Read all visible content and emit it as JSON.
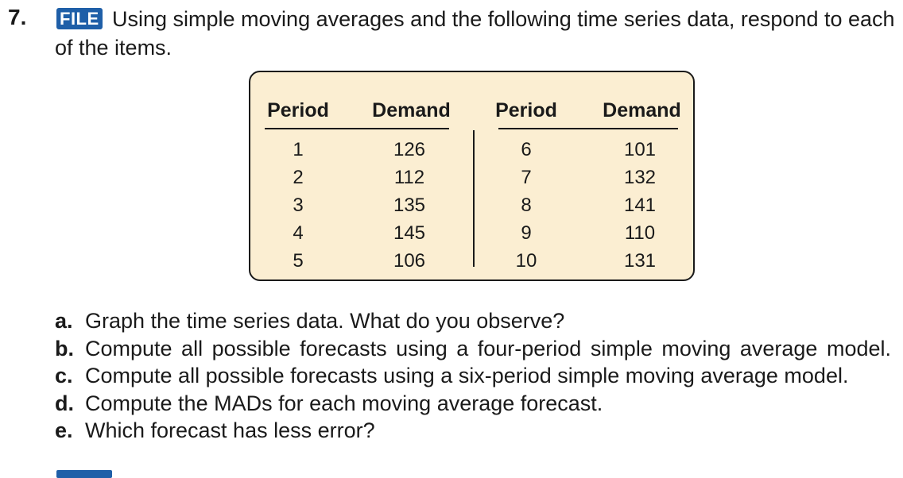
{
  "question": {
    "number": "7.",
    "badge": "FILE",
    "intro": "Using simple moving averages and the following time series data, respond to each of the items."
  },
  "table": {
    "headers": [
      "Period",
      "Demand",
      "Period",
      "Demand"
    ],
    "left_periods": [
      "1",
      "2",
      "3",
      "4",
      "5"
    ],
    "left_demand": [
      "126",
      "112",
      "135",
      "145",
      "106"
    ],
    "right_periods": [
      "6",
      "7",
      "8",
      "9",
      "10"
    ],
    "right_demand": [
      "101",
      "132",
      "141",
      "110",
      "131"
    ]
  },
  "items": [
    {
      "letter": "a.",
      "text": "Graph the time series data. What do you observe?"
    },
    {
      "letter": "b.",
      "text": "Compute all possible forecasts using a four-period simple moving average model."
    },
    {
      "letter": "c.",
      "text": "Compute all possible forecasts using a six-period simple moving average model."
    },
    {
      "letter": "d.",
      "text": "Compute the MADs for each moving average forecast."
    },
    {
      "letter": "e.",
      "text": "Which forecast has less error?"
    }
  ],
  "colors": {
    "badge": "#1f5fa8",
    "table_bg": "#fbeed2"
  }
}
